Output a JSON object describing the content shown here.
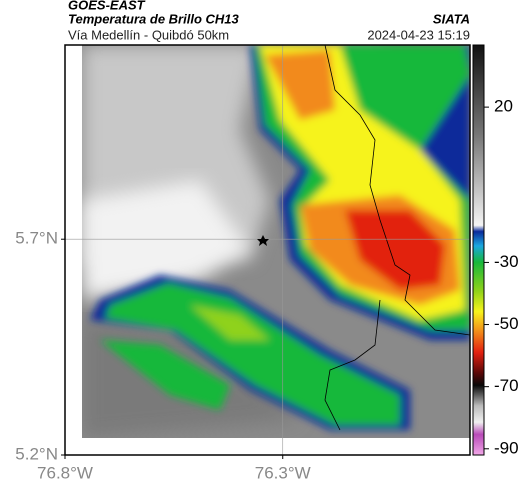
{
  "header": {
    "line1": "GOES-EAST",
    "line2": "Temperatura de Brillo CH13",
    "right_title": "SIATA",
    "subtitle": "Vía Medellín - Quibdó 50km",
    "timestamp": "2024-04-23 15:19"
  },
  "map": {
    "xlim": [
      -76.8,
      -75.87
    ],
    "ylim": [
      5.2,
      6.15
    ],
    "xticks": [
      {
        "value": -76.8,
        "label": "76.8°W"
      },
      {
        "value": -76.3,
        "label": "76.3°W"
      }
    ],
    "yticks": [
      {
        "value": 5.2,
        "label": "5.2°N"
      },
      {
        "value": 5.7,
        "label": "5.7°N"
      }
    ],
    "grid": true
  },
  "colorbar": {
    "lim": [
      -92,
      40
    ],
    "ticks": [
      20,
      -30,
      -50,
      -70,
      -90
    ]
  }
}
